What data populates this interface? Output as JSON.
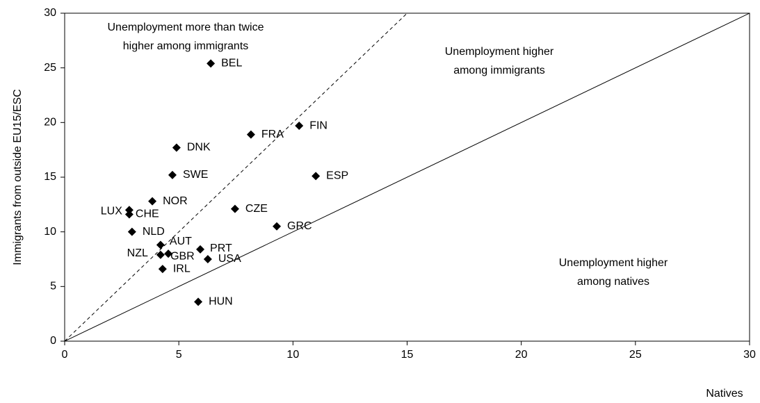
{
  "chart_data": {
    "type": "scatter",
    "x_label": "Natives",
    "y_label": "Immigrants from outside EU15/ESC",
    "color": "#000000",
    "xlim": [
      0,
      30
    ],
    "ylim": [
      0,
      30
    ],
    "xticks": [
      0,
      5,
      10,
      15,
      20,
      25,
      30
    ],
    "yticks": [
      0,
      5,
      10,
      15,
      20,
      25,
      30
    ],
    "reference_lines": [
      {
        "slope": 1,
        "style": "solid"
      },
      {
        "slope": 2,
        "style": "dashed"
      }
    ],
    "annotations": [
      [
        "Unemployment more than twice",
        "higher among immigrants"
      ],
      [
        "Unemployment higher",
        "among immigrants"
      ],
      [
        "Unemployment higher",
        "among natives"
      ]
    ],
    "labels": [
      "BEL",
      "FIN",
      "FRA",
      "DNK",
      "SWE",
      "ESP",
      "NOR",
      "CZE",
      "LUX",
      "CHE",
      "GRC",
      "NLD",
      "AUT",
      "PRT",
      "GBR",
      "NZL",
      "USA",
      "IRL",
      "HUN"
    ],
    "x": [
      6.4,
      10.27,
      8.16,
      4.9,
      4.72,
      11.0,
      3.84,
      7.46,
      2.83,
      2.83,
      9.29,
      2.95,
      4.2,
      5.94,
      4.54,
      4.2,
      6.27,
      4.29,
      5.85
    ],
    "y": [
      25.4,
      19.7,
      18.9,
      17.7,
      15.2,
      15.1,
      12.8,
      12.1,
      12.0,
      11.6,
      10.5,
      10.0,
      8.8,
      8.4,
      8.0,
      7.9,
      7.5,
      6.6,
      3.6
    ]
  }
}
